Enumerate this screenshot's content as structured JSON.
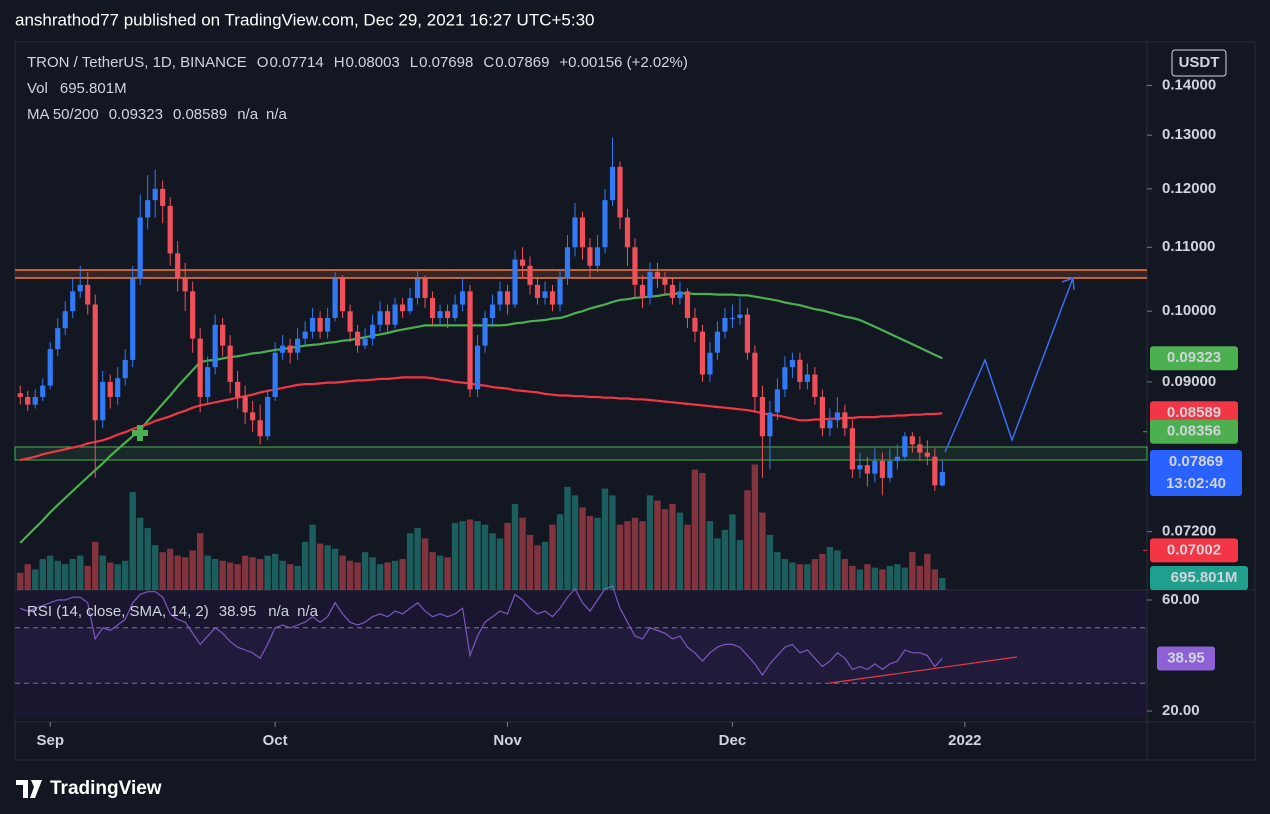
{
  "chart_data": {
    "type": "candlestick",
    "publisher": "anshrathod77 published on TradingView.com, Dec 29, 2021 16:27 UTC+5:30",
    "symbol": "TRON / TetherUS, 1D, BINANCE",
    "ohlc_keys": [
      "O",
      "H",
      "L",
      "C"
    ],
    "change": "+0.00156 (+2.02%)",
    "currency": "USDT",
    "countdown": "13:02:40",
    "footer": "TradingView",
    "up_color": "#3179f5",
    "down_color": "#f0505a",
    "value_color": "#4d8ff0",
    "log_scale": true,
    "ylim": [
      0.066,
      0.1487
    ],
    "yticks": [
      {
        "value": 0.072,
        "label": "0.07200"
      },
      {
        "value": 0.09,
        "label": "0.09000"
      },
      {
        "value": 0.1,
        "label": "0.10000"
      },
      {
        "value": 0.11,
        "label": "0.11000"
      },
      {
        "value": 0.12,
        "label": "0.12000"
      },
      {
        "value": 0.13,
        "label": "0.13000"
      },
      {
        "value": 0.14,
        "label": "0.14000"
      }
    ],
    "grid": false,
    "xlim": [
      -0.7,
      150.3
    ],
    "xticks": [
      {
        "value": 4,
        "label": "Sep"
      },
      {
        "value": 34,
        "label": "Oct"
      },
      {
        "value": 65,
        "label": "Nov"
      },
      {
        "value": 95,
        "label": "Dec"
      },
      {
        "value": 126,
        "label": "2022"
      }
    ],
    "open": [
      0.0885,
      0.088,
      0.087,
      0.088,
      0.0895,
      0.0945,
      0.0975,
      0.1,
      0.103,
      0.104,
      0.101,
      0.085,
      0.09,
      0.088,
      0.0905,
      0.093,
      0.105,
      0.115,
      0.118,
      0.12,
      0.117,
      0.109,
      0.105,
      0.103,
      0.096,
      0.088,
      0.092,
      0.098,
      0.095,
      0.09,
      0.088,
      0.086,
      0.085,
      0.083,
      0.088,
      0.094,
      0.095,
      0.094,
      0.096,
      0.097,
      0.099,
      0.097,
      0.099,
      0.105,
      0.1,
      0.097,
      0.095,
      0.096,
      0.098,
      0.1,
      0.098,
      0.101,
      0.1,
      0.102,
      0.105,
      0.102,
      0.099,
      0.1,
      0.099,
      0.101,
      0.103,
      0.089,
      0.095,
      0.099,
      0.101,
      0.103,
      0.101,
      0.108,
      0.107,
      0.104,
      0.102,
      0.103,
      0.101,
      0.105,
      0.11,
      0.115,
      0.11,
      0.107,
      0.11,
      0.118,
      0.124,
      0.115,
      0.11,
      0.104,
      0.102,
      0.106,
      0.105,
      0.104,
      0.102,
      0.103,
      0.099,
      0.097,
      0.091,
      0.094,
      0.097,
      0.099,
      0.099,
      0.0995,
      0.094,
      0.088,
      0.083,
      0.086,
      0.089,
      0.092,
      0.093,
      0.09,
      0.091,
      0.088,
      0.084,
      0.085,
      0.086,
      0.084,
      0.079,
      0.0795,
      0.0785,
      0.08,
      0.078,
      0.08,
      0.0805,
      0.083,
      0.082,
      0.081,
      0.0805,
      0.07714
    ],
    "high": [
      0.0895,
      0.0888,
      0.089,
      0.0905,
      0.0955,
      0.099,
      0.1015,
      0.105,
      0.107,
      0.106,
      0.1025,
      0.0915,
      0.091,
      0.092,
      0.0945,
      0.107,
      0.119,
      0.1225,
      0.1235,
      0.1215,
      0.1185,
      0.111,
      0.1075,
      0.1045,
      0.0975,
      0.0935,
      0.0995,
      0.099,
      0.0965,
      0.0915,
      0.0895,
      0.0875,
      0.087,
      0.089,
      0.0955,
      0.0965,
      0.096,
      0.0975,
      0.0985,
      0.1005,
      0.1,
      0.1005,
      0.106,
      0.1055,
      0.101,
      0.098,
      0.0975,
      0.0995,
      0.1015,
      0.101,
      0.102,
      0.102,
      0.1035,
      0.1065,
      0.1055,
      0.103,
      0.101,
      0.101,
      0.1025,
      0.105,
      0.104,
      0.0965,
      0.1,
      0.1025,
      0.1045,
      0.104,
      0.1095,
      0.11,
      0.1085,
      0.105,
      0.1045,
      0.104,
      0.1065,
      0.112,
      0.1175,
      0.116,
      0.1115,
      0.112,
      0.12,
      0.1295,
      0.125,
      0.1165,
      0.1115,
      0.1055,
      0.1075,
      0.1075,
      0.106,
      0.105,
      0.1045,
      0.1035,
      0.1005,
      0.098,
      0.0955,
      0.0985,
      0.1005,
      0.101,
      0.102,
      0.1005,
      0.095,
      0.0895,
      0.0875,
      0.0905,
      0.0935,
      0.094,
      0.094,
      0.0925,
      0.092,
      0.089,
      0.0865,
      0.088,
      0.087,
      0.085,
      0.081,
      0.0805,
      0.0815,
      0.081,
      0.0815,
      0.082,
      0.0835,
      0.0835,
      0.083,
      0.0825,
      0.0815,
      0.08003
    ],
    "low": [
      0.087,
      0.0862,
      0.0865,
      0.0875,
      0.089,
      0.0935,
      0.0965,
      0.099,
      0.102,
      0.0995,
      0.078,
      0.084,
      0.0865,
      0.087,
      0.0895,
      0.092,
      0.104,
      0.113,
      0.115,
      0.114,
      0.107,
      0.103,
      0.1,
      0.094,
      0.086,
      0.087,
      0.091,
      0.0935,
      0.0885,
      0.0865,
      0.0845,
      0.0835,
      0.082,
      0.0825,
      0.0875,
      0.093,
      0.0925,
      0.093,
      0.095,
      0.096,
      0.096,
      0.096,
      0.0985,
      0.099,
      0.0955,
      0.094,
      0.0945,
      0.095,
      0.097,
      0.097,
      0.0975,
      0.099,
      0.0995,
      0.101,
      0.1005,
      0.098,
      0.098,
      0.0975,
      0.0985,
      0.1,
      0.088,
      0.088,
      0.094,
      0.098,
      0.1,
      0.0995,
      0.1005,
      0.105,
      0.1025,
      0.101,
      0.101,
      0.1,
      0.1,
      0.104,
      0.1085,
      0.108,
      0.105,
      0.106,
      0.109,
      0.117,
      0.113,
      0.107,
      0.102,
      0.1005,
      0.101,
      0.1035,
      0.1025,
      0.101,
      0.101,
      0.0975,
      0.0955,
      0.09,
      0.09,
      0.093,
      0.096,
      0.0975,
      0.098,
      0.093,
      0.086,
      0.078,
      0.079,
      0.085,
      0.088,
      0.0905,
      0.089,
      0.089,
      0.087,
      0.083,
      0.083,
      0.084,
      0.083,
      0.078,
      0.078,
      0.077,
      0.0775,
      0.076,
      0.0775,
      0.079,
      0.08,
      0.081,
      0.08,
      0.0795,
      0.0765,
      0.07698
    ],
    "close": [
      0.088,
      0.087,
      0.088,
      0.0895,
      0.0945,
      0.0975,
      0.1,
      0.103,
      0.104,
      0.101,
      0.085,
      0.09,
      0.088,
      0.0905,
      0.093,
      0.105,
      0.115,
      0.118,
      0.12,
      0.117,
      0.109,
      0.105,
      0.103,
      0.096,
      0.088,
      0.092,
      0.098,
      0.095,
      0.09,
      0.088,
      0.086,
      0.085,
      0.083,
      0.088,
      0.094,
      0.095,
      0.094,
      0.096,
      0.097,
      0.099,
      0.097,
      0.099,
      0.105,
      0.1,
      0.097,
      0.095,
      0.096,
      0.098,
      0.1,
      0.098,
      0.101,
      0.1,
      0.102,
      0.105,
      0.102,
      0.099,
      0.1,
      0.099,
      0.101,
      0.103,
      0.089,
      0.095,
      0.099,
      0.101,
      0.103,
      0.101,
      0.108,
      0.107,
      0.104,
      0.102,
      0.103,
      0.101,
      0.105,
      0.11,
      0.115,
      0.11,
      0.107,
      0.11,
      0.118,
      0.124,
      0.115,
      0.11,
      0.104,
      0.102,
      0.106,
      0.105,
      0.104,
      0.102,
      0.103,
      0.099,
      0.097,
      0.091,
      0.094,
      0.097,
      0.099,
      0.099,
      0.0995,
      0.094,
      0.088,
      0.083,
      0.086,
      0.089,
      0.092,
      0.093,
      0.09,
      0.091,
      0.088,
      0.084,
      0.085,
      0.086,
      0.084,
      0.079,
      0.0795,
      0.0785,
      0.08,
      0.078,
      0.08,
      0.0805,
      0.083,
      0.082,
      0.081,
      0.0805,
      0.07714,
      0.07869
    ],
    "volume": {
      "name": "Vol",
      "color": "#26a69a",
      "last_label": "695.801M",
      "ylim": [
        0,
        10000
      ],
      "values": [
        1000,
        1500,
        1200,
        1800,
        2000,
        1700,
        1500,
        1800,
        2000,
        1400,
        2800,
        2000,
        1600,
        1500,
        1700,
        5700,
        4200,
        3600,
        2600,
        2200,
        2400,
        2000,
        1900,
        2300,
        3300,
        2000,
        1800,
        1700,
        1600,
        1500,
        2000,
        1900,
        1800,
        2000,
        2100,
        1700,
        1500,
        1400,
        2800,
        3800,
        2700,
        2600,
        2400,
        2000,
        1700,
        1600,
        2200,
        1900,
        1500,
        1600,
        1700,
        1800,
        3300,
        3600,
        3000,
        2200,
        2000,
        1900,
        3900,
        4000,
        4100,
        4000,
        3800,
        3300,
        3000,
        3900,
        5000,
        4200,
        3200,
        2600,
        2800,
        3800,
        4400,
        6000,
        5500,
        4800,
        4300,
        4200,
        5900,
        5500,
        3800,
        4000,
        4200,
        4000,
        5500,
        5200,
        4700,
        5000,
        4500,
        3800,
        7000,
        6800,
        4000,
        3000,
        3500,
        4400,
        2900,
        5800,
        7300,
        4500,
        3200,
        2200,
        1800,
        1600,
        1500,
        1500,
        1800,
        2100,
        2500,
        2300,
        1800,
        1400,
        1200,
        1500,
        1300,
        1200,
        1400,
        1500,
        1300,
        2200,
        1400,
        2100,
        1200,
        695.801
      ]
    },
    "ma": {
      "name": "MA 50/200",
      "na": [
        "n/a",
        "n/a"
      ],
      "series": [
        {
          "color": "#4caf50",
          "values": [
            0.0708,
            0.0716,
            0.0724,
            0.0732,
            0.0741,
            0.0749,
            0.0757,
            0.0765,
            0.0773,
            0.0781,
            0.0789,
            0.0797,
            0.0806,
            0.0814,
            0.0822,
            0.083,
            0.0838,
            0.0849,
            0.086,
            0.0871,
            0.0882,
            0.0894,
            0.0905,
            0.0916,
            0.0927,
            0.0929,
            0.093,
            0.0932,
            0.0934,
            0.0935,
            0.0937,
            0.0939,
            0.094,
            0.0942,
            0.0944,
            0.0945,
            0.0947,
            0.0948,
            0.095,
            0.0951,
            0.0952,
            0.0954,
            0.0955,
            0.0957,
            0.0958,
            0.096,
            0.0962,
            0.0964,
            0.0966,
            0.0968,
            0.0971,
            0.0973,
            0.0975,
            0.0977,
            0.0979,
            0.0979,
            0.0979,
            0.0979,
            0.0979,
            0.0979,
            0.0979,
            0.0979,
            0.0979,
            0.0979,
            0.0979,
            0.098,
            0.0982,
            0.0983,
            0.0985,
            0.0986,
            0.0987,
            0.0989,
            0.099,
            0.0993,
            0.0997,
            0.1,
            0.1004,
            0.1007,
            0.101,
            0.1014,
            0.1017,
            0.1018,
            0.102,
            0.1021,
            0.1022,
            0.1023,
            0.1025,
            0.1026,
            0.1027,
            0.1027,
            0.1026,
            0.1026,
            0.1026,
            0.1025,
            0.1025,
            0.1025,
            0.1024,
            0.1024,
            0.1022,
            0.102,
            0.1018,
            0.1016,
            0.1013,
            0.1011,
            0.1009,
            0.1006,
            0.1003,
            0.1001,
            0.0998,
            0.0995,
            0.0992,
            0.099,
            0.0987,
            0.0982,
            0.0977,
            0.0972,
            0.0967,
            0.0962,
            0.0957,
            0.0952,
            0.0947,
            0.0942,
            0.0937,
            0.09323
          ]
        },
        {
          "color": "#f23645",
          "values": [
            0.0801,
            0.0803,
            0.0805,
            0.0808,
            0.081,
            0.0812,
            0.0814,
            0.0816,
            0.0818,
            0.0821,
            0.0823,
            0.0825,
            0.0828,
            0.0832,
            0.0835,
            0.0839,
            0.0842,
            0.0845,
            0.0849,
            0.0852,
            0.0855,
            0.0859,
            0.0862,
            0.0866,
            0.0869,
            0.0871,
            0.0873,
            0.0875,
            0.0877,
            0.0879,
            0.0881,
            0.0883,
            0.0886,
            0.0888,
            0.089,
            0.0892,
            0.0894,
            0.0896,
            0.0897,
            0.0897,
            0.0898,
            0.0899,
            0.0899,
            0.09,
            0.0901,
            0.0902,
            0.0902,
            0.0903,
            0.0904,
            0.0904,
            0.0905,
            0.0906,
            0.0906,
            0.0906,
            0.0906,
            0.0905,
            0.0903,
            0.0902,
            0.09,
            0.0899,
            0.0898,
            0.0896,
            0.0895,
            0.0893,
            0.0892,
            0.0891,
            0.0889,
            0.0888,
            0.0887,
            0.0886,
            0.0884,
            0.0883,
            0.0882,
            0.0882,
            0.0881,
            0.0881,
            0.088,
            0.088,
            0.0879,
            0.0879,
            0.0878,
            0.0878,
            0.0877,
            0.0877,
            0.0876,
            0.0875,
            0.0874,
            0.0873,
            0.0872,
            0.0871,
            0.087,
            0.0869,
            0.0868,
            0.0867,
            0.0866,
            0.0865,
            0.0864,
            0.0863,
            0.0861,
            0.0859,
            0.0857,
            0.0856,
            0.0854,
            0.0852,
            0.085,
            0.085,
            0.0851,
            0.0851,
            0.0852,
            0.0852,
            0.0853,
            0.0853,
            0.0854,
            0.0854,
            0.0854,
            0.0855,
            0.0855,
            0.0856,
            0.0856,
            0.0857,
            0.0857,
            0.0858,
            0.0858,
            0.08589
          ]
        }
      ]
    },
    "price_lines": [
      {
        "value": 0.08356,
        "color": "#4caf50"
      },
      {
        "value": 0.07002,
        "color": "#f23645"
      }
    ],
    "rsi": {
      "name": "RSI (14, close, SMA, 14, 2)",
      "na": [
        "n/a",
        "n/a"
      ],
      "color": "#7e57c2",
      "label_color": "#8e62d6",
      "ylim": [
        17.5,
        63.6
      ],
      "yticks": [
        {
          "value": 60,
          "label": "60.00"
        },
        {
          "value": 20,
          "label": "20.00"
        }
      ],
      "bands": [
        50,
        30
      ],
      "values": [
        57,
        56,
        57,
        58,
        59,
        60,
        60,
        61,
        61,
        59,
        46,
        50,
        49,
        51,
        53,
        59,
        62,
        63,
        63,
        61,
        55,
        53,
        52,
        48,
        44,
        47,
        50,
        48,
        45,
        43,
        42,
        41,
        39,
        44,
        50,
        51,
        50,
        51,
        52,
        54,
        52,
        54,
        59,
        55,
        52,
        51,
        52,
        54,
        55,
        54,
        56,
        55,
        57,
        59,
        56,
        54,
        55,
        54,
        55,
        57,
        40,
        47,
        52,
        54,
        56,
        55,
        62,
        60,
        57,
        55,
        56,
        54,
        57,
        61,
        64,
        59,
        56,
        60,
        64,
        65,
        57,
        52,
        47,
        46,
        50,
        49,
        48,
        46,
        47,
        43,
        41,
        38,
        41,
        43,
        44,
        44,
        43,
        40,
        37,
        33,
        37,
        40,
        43,
        44,
        41,
        42,
        39,
        36,
        38,
        41,
        39,
        35,
        36,
        35,
        37,
        35,
        37,
        38,
        42,
        41,
        41,
        40,
        36,
        38.95
      ]
    }
  }
}
